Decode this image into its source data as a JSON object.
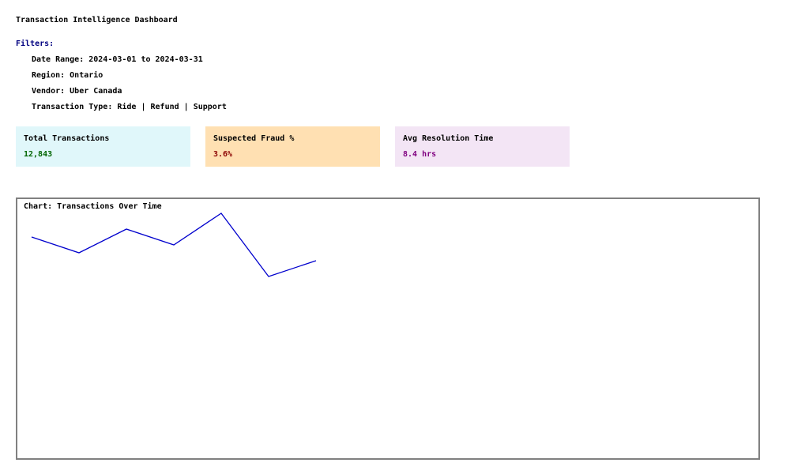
{
  "dashboard": {
    "title": "Transaction Intelligence Dashboard"
  },
  "filters": {
    "heading": "Filters:",
    "heading_color": "#000080",
    "items": [
      "Date Range: 2024-03-01 to 2024-03-31",
      "Region: Ontario",
      "Vendor: Uber Canada",
      "Transaction Type: Ride | Refund | Support"
    ]
  },
  "kpis": [
    {
      "label": "Total Transactions",
      "value": "12,843",
      "bg": "#e0f7fa",
      "value_color": "#006400"
    },
    {
      "label": "Suspected Fraud %",
      "value": "3.6%",
      "bg": "#ffe0b2",
      "value_color": "#8b0000"
    },
    {
      "label": "Avg Resolution Time",
      "value": "8.4 hrs",
      "bg": "#f3e5f5",
      "value_color": "#800080"
    }
  ],
  "chart": {
    "title": "Chart: Transactions Over Time",
    "border_color": "#808080",
    "line_color": "#0000cd"
  },
  "chart_data": {
    "type": "line",
    "title": "Chart: Transactions Over Time",
    "xlabel": "",
    "ylabel": "",
    "grid": false,
    "series": [
      {
        "values": [
          5,
          3,
          6,
          4,
          8,
          0,
          2
        ]
      }
    ],
    "ylim": [
      0,
      8
    ]
  }
}
